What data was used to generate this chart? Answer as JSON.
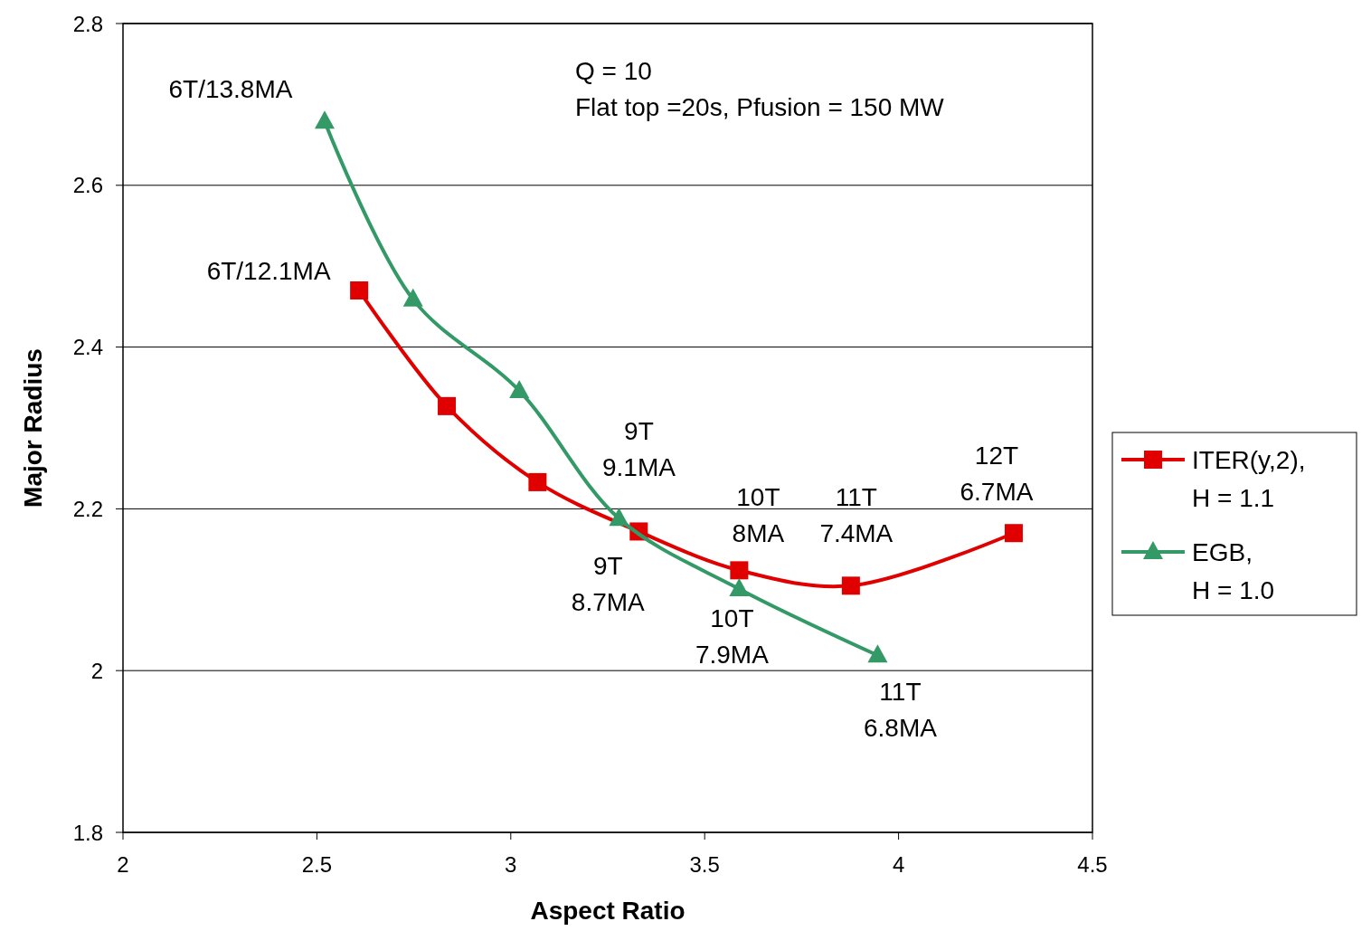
{
  "chart_data": {
    "type": "line",
    "xlabel": "Aspect Ratio",
    "ylabel": "Major Radius",
    "xlim": [
      2,
      4.5
    ],
    "xticks": [
      2,
      2.5,
      3,
      3.5,
      4,
      4.5
    ],
    "ylim": [
      1.8,
      2.8
    ],
    "yticks": [
      1.8,
      2,
      2.2,
      2.4,
      2.6,
      2.8
    ],
    "grid": "y",
    "legend": "right",
    "line_style": "solid",
    "series": [
      {
        "name": "ITER(y,2),\nH = 1.1",
        "color": "#e00000",
        "marker": "square",
        "x": [
          2.609,
          2.835,
          3.069,
          3.33,
          3.589,
          3.877,
          4.297
        ],
        "values": [
          2.47,
          2.327,
          2.233,
          2.172,
          2.124,
          2.105,
          2.17
        ]
      },
      {
        "name": "EGB,\nH = 1.0",
        "color": "#339966",
        "marker": "triangle",
        "x": [
          2.52,
          2.748,
          3.022,
          3.279,
          3.589,
          3.946
        ],
        "values": [
          2.679,
          2.459,
          2.346,
          2.188,
          2.101,
          2.019
        ]
      }
    ],
    "annotations": [
      "Q = 10",
      "Flat top =20s, Pfusion = 150 MW",
      {
        "text": "6T/13.8MA",
        "x": 2.52,
        "y": 2.679
      },
      {
        "text": "6T/12.1MA",
        "x": 2.609,
        "y": 2.47
      },
      {
        "text": "9T\n9.1MA",
        "x": 3.279,
        "y": 2.188
      },
      {
        "text": "9T\n8.7MA",
        "x": 3.33,
        "y": 2.172
      },
      {
        "text": "10T\n8MA",
        "x": 3.589,
        "y": 2.124
      },
      {
        "text": "10T\n7.9MA",
        "x": 3.589,
        "y": 2.101
      },
      {
        "text": "11T\n7.4MA",
        "x": 3.877,
        "y": 2.105
      },
      {
        "text": "11T\n6.8MA",
        "x": 3.946,
        "y": 2.019
      },
      {
        "text": "12T\n6.7MA",
        "x": 4.297,
        "y": 2.17
      }
    ]
  }
}
